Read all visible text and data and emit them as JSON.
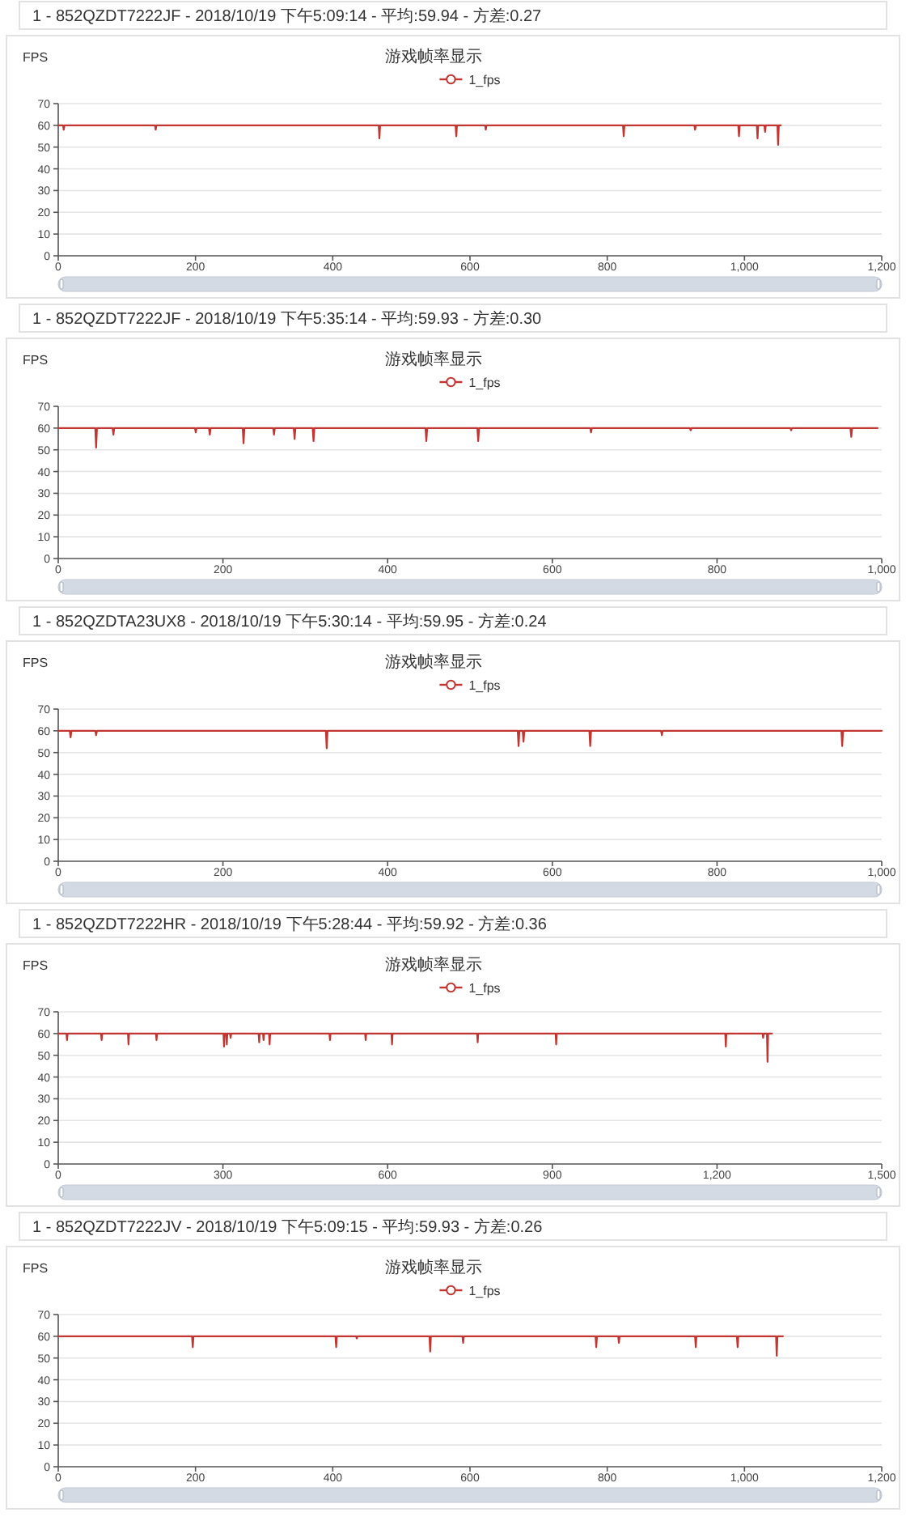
{
  "chart_data": [
    {
      "type": "line",
      "subtitle": "1 - 852QZDT7222JF - 2018/10/19 下午5:09:14 - 平均:59.94 - 方差:0.27",
      "title": "游戏帧率显示",
      "ylabel": "FPS",
      "legend": "top",
      "grid": "y",
      "xlim": [
        0,
        1200
      ],
      "xticks": [
        0,
        200,
        400,
        600,
        800,
        {
          "value": 1000,
          "label": "1,000"
        },
        {
          "value": 1200,
          "label": "1,200"
        }
      ],
      "ylim": [
        0,
        70
      ],
      "yticks": [
        0,
        10,
        20,
        30,
        40,
        50,
        60,
        70
      ],
      "x": [
        0,
        7,
        8,
        9,
        141,
        142,
        143,
        467,
        468,
        469,
        579,
        580,
        581,
        622,
        623,
        624,
        823,
        824,
        825,
        927,
        928,
        929,
        991,
        992,
        993,
        1018,
        1019,
        1020,
        1029,
        1030,
        1031,
        1048,
        1049,
        1050,
        1053
      ],
      "series": [
        {
          "name": "1_fps",
          "color": "#c23531",
          "values": [
            60,
            60,
            58,
            60,
            60,
            58,
            60,
            60,
            54,
            60,
            60,
            55,
            60,
            60,
            58,
            60,
            60,
            55,
            60,
            60,
            58,
            60,
            60,
            55,
            60,
            60,
            54,
            60,
            60,
            57,
            60,
            60,
            51,
            60,
            60
          ]
        }
      ]
    },
    {
      "type": "line",
      "subtitle": "1 - 852QZDT7222JF - 2018/10/19 下午5:35:14 - 平均:59.93 - 方差:0.30",
      "title": "游戏帧率显示",
      "ylabel": "FPS",
      "legend": "top",
      "grid": "y",
      "xlim": [
        0,
        1000
      ],
      "xticks": [
        0,
        200,
        400,
        600,
        800,
        {
          "value": 1000,
          "label": "1,000"
        }
      ],
      "ylim": [
        0,
        70
      ],
      "yticks": [
        0,
        10,
        20,
        30,
        40,
        50,
        60,
        70
      ],
      "x": [
        0,
        45,
        46,
        47,
        66,
        67,
        68,
        166,
        167,
        168,
        183,
        184,
        185,
        224,
        225,
        226,
        261,
        262,
        263,
        286,
        287,
        288,
        309,
        310,
        311,
        446,
        447,
        448,
        509,
        510,
        511,
        646,
        647,
        648,
        767,
        768,
        769,
        889,
        890,
        891,
        962,
        963,
        964,
        995
      ],
      "series": [
        {
          "name": "1_fps",
          "color": "#c23531",
          "values": [
            60,
            60,
            51,
            60,
            60,
            57,
            60,
            60,
            58,
            60,
            60,
            57,
            60,
            60,
            53,
            60,
            60,
            57,
            60,
            60,
            55,
            60,
            60,
            54,
            60,
            60,
            54,
            60,
            60,
            54,
            60,
            60,
            58,
            60,
            60,
            59,
            60,
            60,
            59,
            60,
            60,
            56,
            60,
            60
          ]
        }
      ]
    },
    {
      "type": "line",
      "subtitle": "1 - 852QZDTA23UX8 - 2018/10/19 下午5:30:14 - 平均:59.95 - 方差:0.24",
      "title": "游戏帧率显示",
      "ylabel": "FPS",
      "legend": "top",
      "grid": "y",
      "xlim": [
        0,
        1000
      ],
      "xticks": [
        0,
        200,
        400,
        600,
        800,
        {
          "value": 1000,
          "label": "1,000"
        }
      ],
      "ylim": [
        0,
        70
      ],
      "yticks": [
        0,
        10,
        20,
        30,
        40,
        50,
        60,
        70
      ],
      "x": [
        0,
        14,
        15,
        16,
        45,
        46,
        47,
        325,
        326,
        327,
        558,
        559,
        560,
        564,
        565,
        566,
        645,
        646,
        647,
        732,
        733,
        734,
        951,
        952,
        953,
        1000
      ],
      "series": [
        {
          "name": "1_fps",
          "color": "#c23531",
          "values": [
            60,
            60,
            57,
            60,
            60,
            58,
            60,
            60,
            52,
            60,
            60,
            53,
            60,
            60,
            55,
            60,
            60,
            53,
            60,
            60,
            58,
            60,
            60,
            53,
            60,
            60
          ]
        }
      ]
    },
    {
      "type": "line",
      "subtitle": "1 - 852QZDT7222HR - 2018/10/19 下午5:28:44 - 平均:59.92 - 方差:0.36",
      "title": "游戏帧率显示",
      "ylabel": "FPS",
      "legend": "top",
      "grid": "y",
      "xlim": [
        0,
        1500
      ],
      "xticks": [
        0,
        300,
        600,
        900,
        {
          "value": 1200,
          "label": "1,200"
        },
        {
          "value": 1500,
          "label": "1,500"
        }
      ],
      "ylim": [
        0,
        70
      ],
      "yticks": [
        0,
        10,
        20,
        30,
        40,
        50,
        60,
        70
      ],
      "x": [
        0,
        15,
        16,
        17,
        78,
        79,
        80,
        127,
        128,
        129,
        178,
        179,
        180,
        301,
        302,
        303,
        306,
        307,
        308,
        313,
        314,
        315,
        365,
        366,
        367,
        373,
        374,
        375,
        384,
        385,
        386,
        494,
        495,
        496,
        559,
        560,
        561,
        607,
        608,
        609,
        763,
        764,
        765,
        906,
        907,
        908,
        1215,
        1216,
        1217,
        1283,
        1284,
        1285,
        1291,
        1292,
        1293,
        1300
      ],
      "series": [
        {
          "name": "1_fps",
          "color": "#c23531",
          "values": [
            60,
            60,
            57,
            60,
            60,
            57,
            60,
            60,
            55,
            60,
            60,
            57,
            60,
            60,
            54,
            60,
            60,
            55,
            60,
            60,
            58,
            60,
            60,
            56,
            60,
            60,
            57,
            60,
            60,
            55,
            60,
            60,
            57,
            60,
            60,
            57,
            60,
            60,
            55,
            60,
            60,
            56,
            60,
            60,
            55,
            60,
            60,
            54,
            60,
            60,
            58,
            60,
            60,
            47,
            60,
            60
          ]
        }
      ]
    },
    {
      "type": "line",
      "subtitle": "1 - 852QZDT7222JV - 2018/10/19 下午5:09:15 - 平均:59.93 - 方差:0.26",
      "title": "游戏帧率显示",
      "ylabel": "FPS",
      "legend": "top",
      "grid": "y",
      "xlim": [
        0,
        1200
      ],
      "xticks": [
        0,
        200,
        400,
        600,
        800,
        {
          "value": 1000,
          "label": "1,000"
        },
        {
          "value": 1200,
          "label": "1,200"
        }
      ],
      "ylim": [
        0,
        70
      ],
      "yticks": [
        0,
        10,
        20,
        30,
        40,
        50,
        60,
        70
      ],
      "x": [
        0,
        195,
        196,
        197,
        404,
        405,
        406,
        434,
        435,
        436,
        541,
        542,
        543,
        589,
        590,
        591,
        783,
        784,
        785,
        816,
        817,
        818,
        928,
        929,
        930,
        989,
        990,
        991,
        1046,
        1047,
        1048,
        1056
      ],
      "series": [
        {
          "name": "1_fps",
          "color": "#c23531",
          "values": [
            60,
            60,
            55,
            60,
            60,
            55,
            60,
            60,
            59,
            60,
            60,
            53,
            60,
            60,
            57,
            60,
            60,
            55,
            60,
            60,
            57,
            60,
            60,
            55,
            60,
            60,
            55,
            60,
            60,
            51,
            60,
            60
          ]
        }
      ]
    }
  ]
}
